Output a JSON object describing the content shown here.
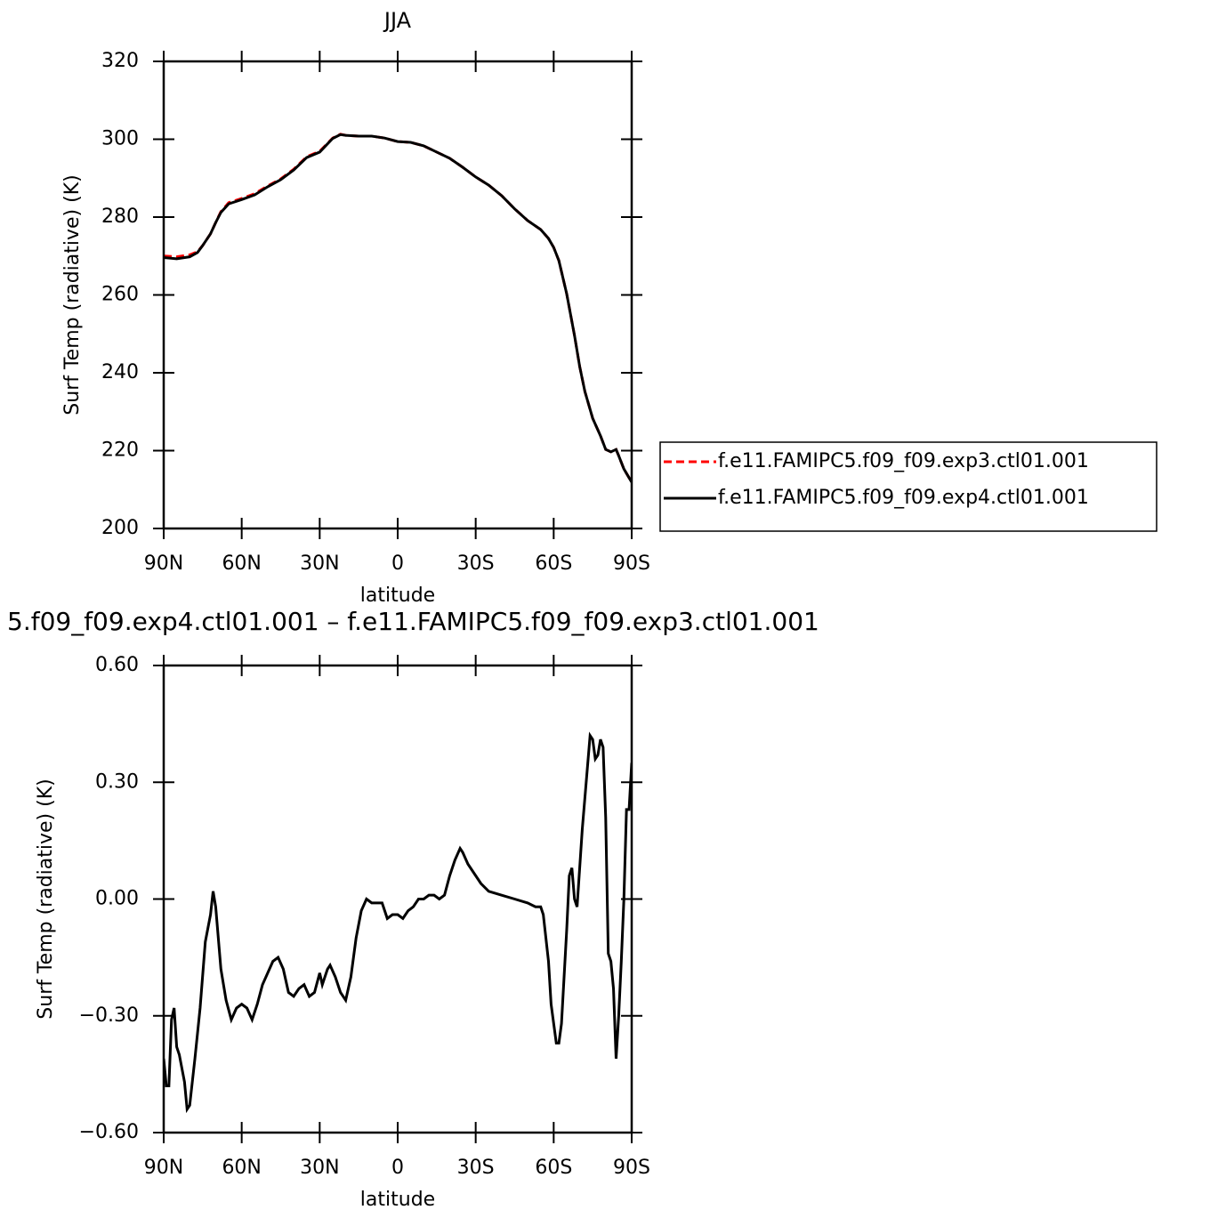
{
  "chart_data": [
    {
      "type": "line",
      "title": "JJA",
      "xlabel": "latitude",
      "ylabel": "Surf Temp (radiative) (K)",
      "xlim": [
        90,
        -90
      ],
      "xticks": [
        {
          "value": 90,
          "label": "90N"
        },
        {
          "value": 60,
          "label": "60N"
        },
        {
          "value": 30,
          "label": "30N"
        },
        0,
        {
          "value": -30,
          "label": "30S"
        },
        {
          "value": -60,
          "label": "60S"
        },
        {
          "value": -90,
          "label": "90S"
        }
      ],
      "ylim": [
        200,
        320
      ],
      "yticks": [
        200,
        220,
        240,
        260,
        280,
        300,
        320
      ],
      "legend": "outside-right",
      "x": [
        90,
        85,
        80,
        77,
        75,
        72,
        70,
        68,
        65,
        60,
        55,
        50,
        45,
        40,
        35,
        30,
        25,
        22,
        20,
        15,
        10,
        5,
        0,
        -5,
        -10,
        -15,
        -20,
        -25,
        -30,
        -35,
        -40,
        -45,
        -50,
        -55,
        -58,
        -60,
        -62,
        -65,
        -68,
        -70,
        -72,
        -75,
        -78,
        -80,
        -82,
        -84,
        -85,
        -87,
        -90
      ],
      "series": [
        {
          "name": "f.e11.FAMIPC5.f09_f09.exp3.ctl01.001",
          "color": "#ff0000",
          "linestyle": "dashed",
          "values": [
            270.0,
            269.8,
            270.3,
            271.1,
            272.7,
            275.7,
            278.6,
            281.4,
            283.7,
            284.8,
            286.0,
            288.0,
            289.8,
            292.3,
            295.5,
            296.9,
            300.3,
            301.3,
            301.0,
            300.8,
            300.8,
            300.3,
            299.4,
            299.2,
            298.3,
            296.7,
            295.1,
            292.8,
            290.3,
            288.2,
            285.5,
            282.1,
            279.1,
            276.8,
            274.5,
            272.2,
            268.8,
            260.3,
            249.6,
            241.6,
            235.2,
            228.3,
            223.8,
            220.3,
            219.7,
            220.3,
            218.7,
            215.3,
            211.9
          ]
        },
        {
          "name": "f.e11.FAMIPC5.f09_f09.exp4.ctl01.001",
          "color": "#000000",
          "linestyle": "solid",
          "values": [
            269.6,
            269.3,
            269.8,
            270.9,
            272.7,
            275.7,
            278.6,
            281.2,
            283.4,
            284.5,
            285.7,
            287.8,
            289.6,
            292.1,
            295.3,
            296.7,
            300.2,
            301.2,
            301.0,
            300.8,
            300.8,
            300.3,
            299.4,
            299.2,
            298.3,
            296.7,
            295.1,
            292.8,
            290.3,
            288.2,
            285.5,
            282.1,
            279.1,
            276.8,
            274.5,
            272.2,
            268.8,
            260.3,
            249.6,
            241.6,
            235.2,
            228.3,
            223.8,
            220.3,
            219.7,
            220.3,
            218.7,
            215.3,
            211.9
          ]
        }
      ]
    },
    {
      "type": "line",
      "title": "5.f09_f09.exp4.ctl01.001 – f.e11.FAMIPC5.f09_f09.exp3.ctl01.001",
      "xlabel": "latitude",
      "ylabel": "Surf Temp (radiative) (K)",
      "xlim": [
        90,
        -90
      ],
      "xticks": [
        {
          "value": 90,
          "label": "90N"
        },
        {
          "value": 60,
          "label": "60N"
        },
        {
          "value": 30,
          "label": "30N"
        },
        0,
        {
          "value": -30,
          "label": "30S"
        },
        {
          "value": -60,
          "label": "60S"
        },
        {
          "value": -90,
          "label": "90S"
        }
      ],
      "ylim": [
        -0.6,
        0.6
      ],
      "yticks": [
        {
          "value": -0.6,
          "label": "−0.60"
        },
        {
          "value": -0.3,
          "label": "−0.30"
        },
        {
          "value": 0,
          "label": "0.00"
        },
        {
          "value": 0.3,
          "label": "0.30"
        },
        {
          "value": 0.6,
          "label": "0.60"
        }
      ],
      "x": [
        90,
        89,
        88,
        87,
        86,
        85,
        84,
        82,
        81,
        80,
        78,
        76,
        74,
        72,
        71,
        70,
        68,
        66,
        64,
        62,
        60,
        58,
        56,
        54,
        52,
        50,
        48,
        46,
        44,
        42,
        40,
        38,
        36,
        34,
        32,
        30,
        29,
        27,
        26,
        24,
        22,
        20,
        18,
        16,
        14,
        12,
        10,
        8,
        6,
        4,
        2,
        0,
        -2,
        -4,
        -6,
        -8,
        -10,
        -12,
        -14,
        -16,
        -18,
        -20,
        -22,
        -24,
        -25,
        -27,
        -30,
        -32,
        -35,
        -40,
        -45,
        -50,
        -53,
        -55,
        -56,
        -58,
        -59,
        -61,
        -62,
        -63,
        -65,
        -66,
        -67,
        -68,
        -69,
        -71,
        -73,
        -74,
        -75,
        -76,
        -77,
        -78,
        -79,
        -80,
        -81,
        -82,
        -83,
        -84,
        -85,
        -86,
        -87,
        -88,
        -89,
        -90
      ],
      "series": [
        {
          "color": "#000000",
          "linestyle": "solid",
          "values": [
            -0.41,
            -0.48,
            -0.48,
            -0.31,
            -0.28,
            -0.38,
            -0.4,
            -0.47,
            -0.54,
            -0.53,
            -0.41,
            -0.28,
            -0.11,
            -0.04,
            0.02,
            -0.02,
            -0.18,
            -0.26,
            -0.31,
            -0.28,
            -0.27,
            -0.28,
            -0.31,
            -0.27,
            -0.22,
            -0.19,
            -0.16,
            -0.15,
            -0.18,
            -0.24,
            -0.25,
            -0.23,
            -0.22,
            -0.25,
            -0.24,
            -0.19,
            -0.22,
            -0.18,
            -0.17,
            -0.2,
            -0.24,
            -0.26,
            -0.2,
            -0.1,
            -0.03,
            0.0,
            -0.01,
            -0.01,
            -0.01,
            -0.05,
            -0.04,
            -0.04,
            -0.05,
            -0.03,
            -0.02,
            0.0,
            0.0,
            0.01,
            0.01,
            0.0,
            0.01,
            0.06,
            0.1,
            0.13,
            0.12,
            0.09,
            0.06,
            0.04,
            0.02,
            0.01,
            0.0,
            -0.01,
            -0.02,
            -0.02,
            -0.04,
            -0.16,
            -0.27,
            -0.37,
            -0.37,
            -0.32,
            -0.08,
            0.06,
            0.08,
            0.0,
            -0.02,
            0.18,
            0.34,
            0.42,
            0.41,
            0.36,
            0.37,
            0.41,
            0.39,
            0.21,
            -0.14,
            -0.16,
            -0.23,
            -0.41,
            -0.3,
            -0.16,
            0.0,
            0.23,
            0.23,
            0.35
          ]
        }
      ]
    }
  ]
}
